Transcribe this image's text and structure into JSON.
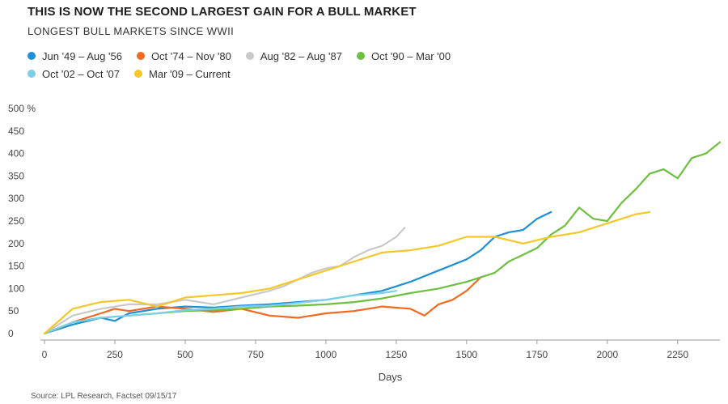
{
  "chart_data": {
    "type": "line",
    "title": "THIS IS NOW THE SECOND LARGEST GAIN FOR A BULL MARKET",
    "subtitle": "LONGEST BULL MARKETS SINCE WWII",
    "xlabel": "Days",
    "ylabel": "%",
    "xlim": [
      0,
      2400
    ],
    "ylim": [
      0,
      500
    ],
    "xticks": [
      0,
      250,
      500,
      750,
      1000,
      1250,
      1500,
      1750,
      2000,
      2250
    ],
    "yticks": [
      0,
      50,
      100,
      150,
      200,
      250,
      300,
      350,
      400,
      450,
      500
    ],
    "ytick_top_suffix": "%",
    "grid": false,
    "legend_position": "top-left",
    "source": "Source: LPL Research, Factset  09/15/17",
    "series": [
      {
        "name": "Jun '49 – Aug '56",
        "color": "#1f8fd8",
        "x": [
          0,
          100,
          200,
          250,
          300,
          400,
          500,
          600,
          700,
          800,
          900,
          1000,
          1100,
          1200,
          1300,
          1400,
          1500,
          1550,
          1600,
          1650,
          1700,
          1750,
          1800
        ],
        "y": [
          0,
          20,
          35,
          28,
          45,
          55,
          60,
          58,
          62,
          65,
          70,
          75,
          85,
          95,
          115,
          140,
          165,
          185,
          215,
          225,
          230,
          255,
          270
        ]
      },
      {
        "name": "Oct '74 – Nov '80",
        "color": "#f26a21",
        "x": [
          0,
          100,
          200,
          250,
          300,
          400,
          500,
          600,
          700,
          800,
          900,
          1000,
          1100,
          1200,
          1300,
          1350,
          1400,
          1450,
          1500,
          1550
        ],
        "y": [
          0,
          25,
          45,
          55,
          50,
          60,
          55,
          48,
          55,
          40,
          35,
          45,
          50,
          60,
          55,
          40,
          65,
          75,
          95,
          125
        ]
      },
      {
        "name": "Aug '82 – Aug '87",
        "color": "#c9c9c9",
        "x": [
          0,
          100,
          200,
          300,
          400,
          500,
          600,
          700,
          800,
          850,
          900,
          950,
          1000,
          1050,
          1100,
          1150,
          1200,
          1250,
          1280
        ],
        "y": [
          0,
          40,
          55,
          65,
          65,
          75,
          65,
          80,
          95,
          105,
          120,
          135,
          145,
          150,
          170,
          185,
          195,
          215,
          235
        ]
      },
      {
        "name": "Oct '90 – Mar '00",
        "color": "#6cbf3f",
        "x": [
          0,
          100,
          200,
          300,
          400,
          500,
          600,
          700,
          800,
          900,
          1000,
          1100,
          1200,
          1300,
          1400,
          1500,
          1600,
          1650,
          1700,
          1750,
          1800,
          1850,
          1900,
          1950,
          2000,
          2050,
          2100,
          2150,
          2200,
          2250,
          2300,
          2350,
          2400
        ],
        "y": [
          0,
          25,
          35,
          40,
          45,
          50,
          52,
          55,
          60,
          62,
          65,
          70,
          78,
          90,
          100,
          115,
          135,
          160,
          175,
          190,
          220,
          240,
          280,
          255,
          250,
          290,
          320,
          355,
          365,
          345,
          390,
          400,
          425
        ]
      },
      {
        "name": "Oct '02 – Oct '07",
        "color": "#7ccfe6",
        "x": [
          0,
          100,
          200,
          300,
          400,
          500,
          600,
          700,
          800,
          900,
          1000,
          1100,
          1200,
          1250
        ],
        "y": [
          0,
          25,
          35,
          40,
          45,
          52,
          55,
          60,
          62,
          68,
          75,
          85,
          90,
          95
        ]
      },
      {
        "name": "Mar '09 – Current",
        "color": "#f5c729",
        "x": [
          0,
          100,
          200,
          300,
          400,
          500,
          600,
          700,
          800,
          900,
          1000,
          1100,
          1200,
          1300,
          1400,
          1500,
          1600,
          1700,
          1800,
          1900,
          2000,
          2100,
          2150
        ],
        "y": [
          0,
          55,
          70,
          75,
          60,
          80,
          85,
          90,
          100,
          120,
          140,
          160,
          180,
          185,
          195,
          215,
          215,
          200,
          215,
          225,
          245,
          265,
          270
        ]
      }
    ]
  }
}
